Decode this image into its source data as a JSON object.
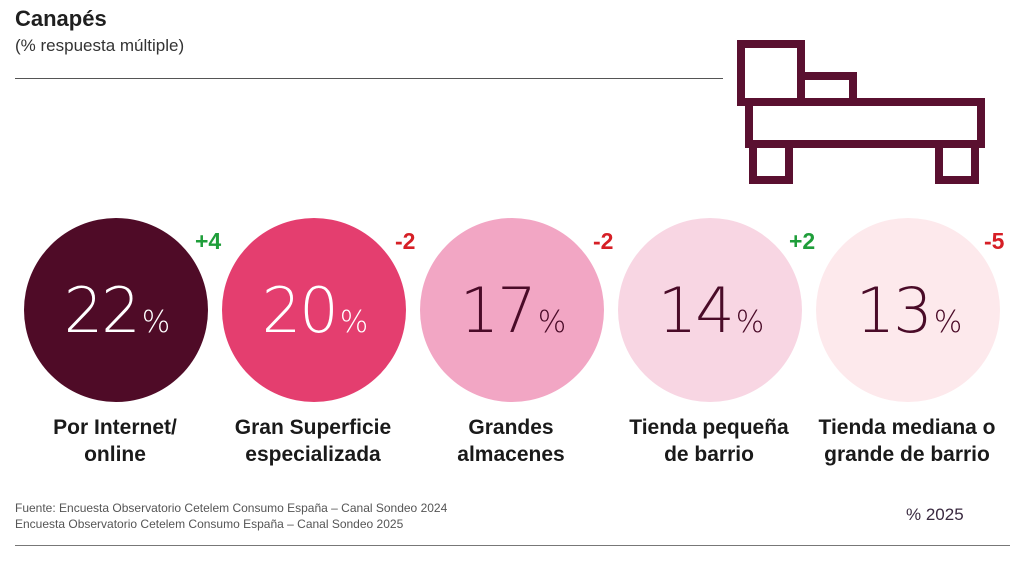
{
  "chart_data": {
    "type": "bubble",
    "title": "Canapés",
    "subtitle": "(% respuesta múltiple)",
    "unit": "%",
    "series_name": "% 2025",
    "categories": [
      "Por Internet/ online",
      "Gran Superficie especializada",
      "Grandes almacenes",
      "Tienda pequeña de barrio",
      "Tienda mediana o grande de barrio"
    ],
    "values": [
      22,
      20,
      17,
      14,
      13
    ],
    "changes_vs_2024": [
      "+4",
      "-2",
      "-2",
      "+2",
      "-5"
    ],
    "items": [
      {
        "label_line1": "Por Internet/",
        "label_line2": "online",
        "value": "22",
        "change": "+4",
        "direction": "pos",
        "fill": "#4f0b27",
        "text_color": "#ffffff"
      },
      {
        "label_line1": "Gran Superficie",
        "label_line2": "especializada",
        "value": "20",
        "change": "-2",
        "direction": "neg",
        "fill": "#e43e6f",
        "text_color": "#ffffff"
      },
      {
        "label_line1": "Grandes",
        "label_line2": "almacenes",
        "value": "17",
        "change": "-2",
        "direction": "neg",
        "fill": "#f2a6c4",
        "text_color": "#4a0b28"
      },
      {
        "label_line1": "Tienda pequeña",
        "label_line2": "de barrio",
        "value": "14",
        "change": "+2",
        "direction": "pos",
        "fill": "#f8d6e3",
        "text_color": "#4a0b28"
      },
      {
        "label_line1": "Tienda mediana o",
        "label_line2": "grande de barrio",
        "value": "13",
        "change": "-5",
        "direction": "neg",
        "fill": "#fde9ec",
        "text_color": "#4a0b28"
      }
    ]
  },
  "percent_sign": "%",
  "source": {
    "line1": "Fuente: Encuesta Observatorio Cetelem Consumo España – Canal Sondeo 2024",
    "line2": "Encuesta Observatorio Cetelem Consumo España – Canal Sondeo 2025"
  },
  "legend": "% 2025",
  "colors": {
    "icon": "#5a1030",
    "positive": "#1f9e3a",
    "negative": "#d61f26"
  },
  "icons": {
    "header": "bed-icon"
  }
}
